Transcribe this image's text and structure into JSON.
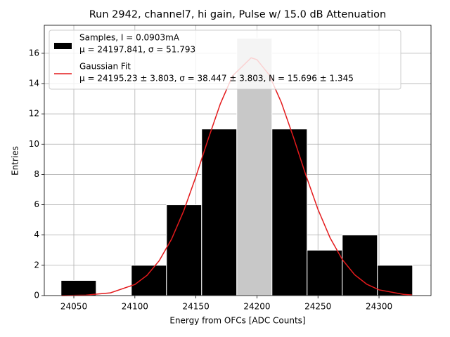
{
  "chart_data": {
    "type": "histogram",
    "title": "Run 2942, channel7, hi gain, Pulse w/ 15.0 dB Attenuation",
    "xlabel": "Energy from OFCs [ADC Counts]",
    "ylabel": "Entries",
    "xlim": [
      24025.8,
      24342.6
    ],
    "ylim": [
      0,
      17.85
    ],
    "xticks": [
      24050,
      24100,
      24150,
      24200,
      24250,
      24300
    ],
    "yticks": [
      0,
      2,
      4,
      6,
      8,
      10,
      12,
      14,
      16
    ],
    "grid": true,
    "legend": "upper left",
    "bins": [
      24039.5,
      24068.3,
      24097.1,
      24125.9,
      24154.7,
      24183.5,
      24212.3,
      24241.1,
      24269.9,
      24298.7,
      24327.5
    ],
    "counts": [
      1,
      0,
      2,
      6,
      11,
      17,
      11,
      3,
      4,
      2
    ],
    "colors": [
      "#000000",
      "#000000",
      "#000000",
      "#000000",
      "#000000",
      "#c8c8c8",
      "#000000",
      "#000000",
      "#000000",
      "#000000"
    ],
    "edge_color": "#ffffff",
    "series": [
      {
        "name": "Samples, I = 0.0903mA",
        "description": "μ = 24197.841, σ = 51.793",
        "color": "#000000"
      },
      {
        "name": "Gaussian Fit",
        "description": "μ = 24195.23 ± 3.803, σ = 38.447 ± 3.803, N = 15.696 ± 1.345",
        "color": "#e41a1c",
        "x": [
          24040,
          24060,
          24080,
          24100,
          24110,
          24120,
          24130,
          24140,
          24150,
          24160,
          24170,
          24180,
          24195.23,
          24200,
          24210,
          24220,
          24230,
          24240,
          24250,
          24260,
          24270,
          24280,
          24290,
          24300,
          24320,
          24327
        ],
        "values": [
          0.0,
          0.03,
          0.18,
          0.73,
          1.34,
          2.31,
          3.72,
          5.59,
          7.86,
          10.32,
          12.66,
          14.51,
          15.7,
          15.58,
          14.58,
          12.75,
          10.43,
          7.97,
          5.69,
          3.8,
          2.37,
          1.38,
          0.75,
          0.38,
          0.08,
          0.04
        ]
      }
    ]
  }
}
